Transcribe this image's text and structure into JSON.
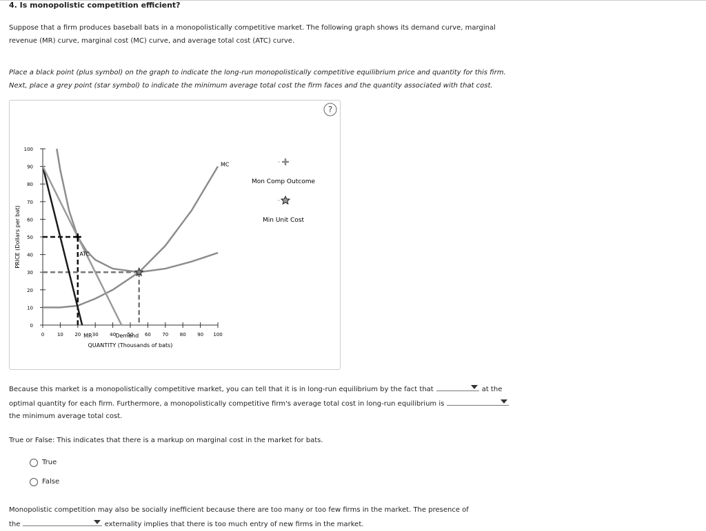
{
  "header": {
    "title": "4. Is monopolistic competition efficient?"
  },
  "intro": "Suppose that a firm produces baseball bats in a monopolistically competitive market. The following graph shows its demand curve, marginal revenue (MR) curve, marginal cost (MC) curve, and average total cost (ATC) curve.",
  "instructions": "Place a black point (plus symbol) on the graph to indicate the long-run monopolistically competitive equilibrium price and quantity for this firm. Next, place a grey point (star symbol) to indicate the minimum average total cost the firm faces and the quantity associated with that cost.",
  "help": "?",
  "chart_data": {
    "type": "line",
    "ylabel": "PRICE (Dollars per bat)",
    "xlabel": "QUANTITY (Thousands of bats)",
    "xlim": [
      0,
      100
    ],
    "ylim": [
      0,
      100
    ],
    "xticks": [
      0,
      10,
      20,
      30,
      40,
      50,
      60,
      70,
      80,
      90,
      100
    ],
    "yticks": [
      0,
      10,
      20,
      30,
      40,
      50,
      60,
      70,
      80,
      90,
      100
    ],
    "series": [
      {
        "name": "MC",
        "color": "#8c8c8c",
        "x": [
          0,
          10,
          20,
          30,
          40,
          55,
          70,
          85,
          100
        ],
        "values": [
          10,
          10,
          11,
          15,
          20,
          30,
          45,
          65,
          90
        ]
      },
      {
        "name": "ATC",
        "color": "#8c8c8c",
        "x": [
          8,
          10,
          15,
          20,
          25,
          30,
          40,
          55,
          70,
          85,
          100
        ],
        "values": [
          100,
          88,
          65,
          50,
          42,
          37,
          32,
          30,
          32,
          36,
          41
        ]
      },
      {
        "name": "MR",
        "color": "#1a1a1a",
        "x": [
          0,
          22.5
        ],
        "values": [
          90,
          0
        ]
      },
      {
        "name": "Demand",
        "color": "#9a9a9a",
        "x": [
          0,
          45
        ],
        "values": [
          90,
          0
        ]
      }
    ],
    "markers": [
      {
        "name": "Mon Comp Outcome",
        "x": 20,
        "y": 50,
        "color": "#000000"
      },
      {
        "name": "Min Unit Cost",
        "x": 55,
        "y": 30,
        "color": "#8c8c8c"
      }
    ]
  },
  "question1": {
    "segments": [
      "Because this market is a monopolistically competitive market, you can tell that it is in long-run equilibrium by the fact that",
      "at the optimal quantity for each firm. Furthermore, a monopolistically competitive firm's average total cost in long-run equilibrium is",
      "the minimum average total cost."
    ]
  },
  "question2": {
    "prompt": "True or False: This indicates that there is a markup on marginal cost in the market for bats.",
    "options": [
      "True",
      "False"
    ]
  },
  "question3": {
    "segments": [
      "Monopolistic competition may also be socially inefficient because there are too many or too few firms in the market. The presence of the",
      "externality implies that there is too much entry of new firms in the market."
    ]
  }
}
